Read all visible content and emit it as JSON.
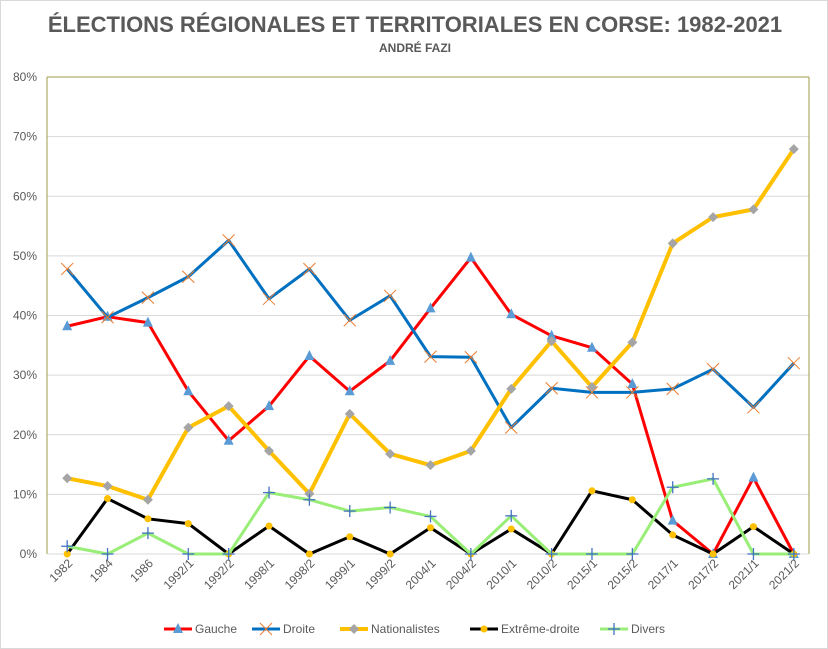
{
  "chart_data": {
    "type": "line",
    "title": "ÉLECTIONS RÉGIONALES ET TERRITORIALES EN CORSE: 1982-2021",
    "subtitle": "ANDRÉ FAZI",
    "categories": [
      "1982",
      "1984",
      "1986",
      "1992/1",
      "1992/2",
      "1998/1",
      "1998/2",
      "1999/1",
      "1999/2",
      "2004/1",
      "2004/2",
      "2010/1",
      "2010/2",
      "2015/1",
      "2015/2",
      "2017/1",
      "2017/2",
      "2021/1",
      "2021/2"
    ],
    "ylim": [
      0,
      80
    ],
    "yticks": [
      "0%",
      "10%",
      "20%",
      "30%",
      "40%",
      "50%",
      "60%",
      "70%",
      "80%"
    ],
    "grid": true,
    "legend": "bottom",
    "series": [
      {
        "name": "Gauche",
        "color": "#ff0000",
        "marker": "triangle",
        "marker_color": "#5b9bd5",
        "width": 3,
        "values": [
          38.2,
          39.8,
          38.8,
          27.3,
          19.0,
          24.8,
          33.2,
          27.3,
          32.4,
          41.2,
          49.7,
          40.2,
          36.6,
          34.6,
          28.5,
          5.6,
          0,
          12.8,
          0
        ]
      },
      {
        "name": "Droite",
        "color": "#0070c0",
        "marker": "x",
        "marker_color": "#ed7d31",
        "width": 3,
        "values": [
          47.8,
          39.7,
          43.0,
          46.5,
          52.6,
          42.8,
          47.8,
          39.2,
          43.3,
          33.1,
          33.0,
          21.2,
          27.8,
          27.1,
          27.1,
          27.7,
          31.0,
          24.6,
          32.0
        ]
      },
      {
        "name": "Nationalistes",
        "color": "#ffc000",
        "marker": "diamond",
        "marker_color": "#a5a5a5",
        "width": 4,
        "values": [
          12.7,
          11.4,
          9.1,
          21.2,
          24.8,
          17.3,
          10.1,
          23.5,
          16.8,
          14.9,
          17.3,
          27.7,
          35.7,
          28.0,
          35.5,
          52.1,
          56.5,
          57.8,
          67.9
        ]
      },
      {
        "name": "Extrême-droite",
        "color": "#000000",
        "marker": "circle",
        "marker_color": "#ffc000",
        "width": 3,
        "values": [
          0,
          9.3,
          5.9,
          5.1,
          0,
          4.7,
          0,
          2.9,
          0,
          4.4,
          0,
          4.2,
          0,
          10.6,
          9.1,
          3.2,
          0,
          4.6,
          0
        ]
      },
      {
        "name": "Divers",
        "color": "#99ee77",
        "marker": "plus",
        "marker_color": "#4472c4",
        "width": 3,
        "values": [
          1.3,
          0,
          3.5,
          0,
          0,
          10.3,
          9.1,
          7.2,
          7.8,
          6.3,
          0,
          6.4,
          0,
          0,
          0,
          11.2,
          12.6,
          0,
          0
        ]
      }
    ]
  }
}
